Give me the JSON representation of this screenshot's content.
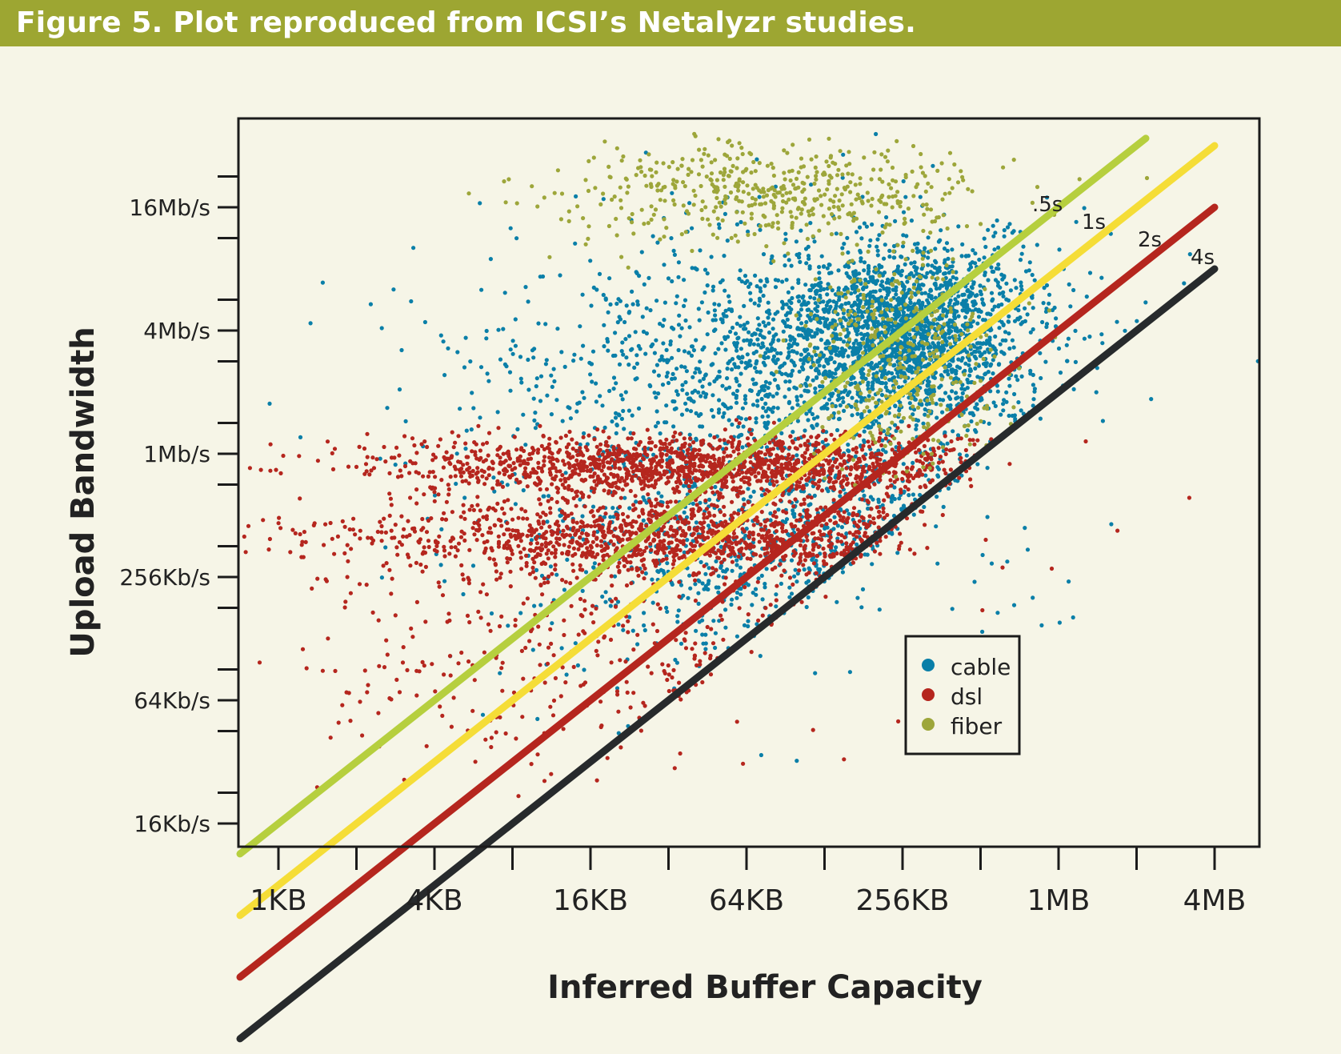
{
  "figure": {
    "title": "Figure 5. Plot reproduced from ICSI’s Netalyzr studies.",
    "header_color": "#9da632",
    "background": "#f6f5e7"
  },
  "chart_data": {
    "type": "scatter",
    "xlabel": "Inferred Buffer Capacity",
    "ylabel": "Upload Bandwidth",
    "x_scale": "log2",
    "y_scale": "log2",
    "xlim": [
      "~700 B",
      "~6 MB"
    ],
    "ylim": [
      "~13 Kb/s",
      "~45 Mb/s"
    ],
    "x_ticks": [
      {
        "label": "1KB",
        "bytes": 1024
      },
      {
        "label": "4KB",
        "bytes": 4096
      },
      {
        "label": "16KB",
        "bytes": 16384
      },
      {
        "label": "64KB",
        "bytes": 65536
      },
      {
        "label": "256KB",
        "bytes": 262144
      },
      {
        "label": "1MB",
        "bytes": 1048576
      },
      {
        "label": "4MB",
        "bytes": 4194304
      }
    ],
    "y_ticks": [
      {
        "label": "16Kb/s",
        "kbps": 16
      },
      {
        "label": "64Kb/s",
        "kbps": 64
      },
      {
        "label": "256Kb/s",
        "kbps": 256
      },
      {
        "label": "1Mb/s",
        "kbps": 1024
      },
      {
        "label": "4Mb/s",
        "kbps": 4096
      },
      {
        "label": "16Mb/s",
        "kbps": 16384
      }
    ],
    "grid": false,
    "legend_position": "bottom-right inside plot",
    "series": [
      {
        "name": "cable",
        "color": "#0a7fa8",
        "marker": "dot"
      },
      {
        "name": "dsl",
        "color": "#b5261e",
        "marker": "dot"
      },
      {
        "name": "fiber",
        "color": "#9da63a",
        "marker": "dot"
      }
    ],
    "point_clusters": [
      {
        "series": "cable",
        "note": "dense cluster around 256KB buffer, 2-8 Mb/s upload",
        "center_kb": 256,
        "center_kbps": 4096,
        "count": 1800
      },
      {
        "series": "cable",
        "note": "broad scatter",
        "center_kb": 90,
        "center_kbps": 2500,
        "count": 1500
      },
      {
        "series": "cable",
        "note": "low-bandwidth diagonal band",
        "center_kb": 120,
        "center_kbps": 300,
        "count": 1100
      },
      {
        "series": "dsl",
        "note": "band at ~1 Mb/s",
        "center_kb": 45,
        "center_kbps": 900,
        "count": 1600
      },
      {
        "series": "dsl",
        "note": "band at ~400 Kb/s",
        "center_kb": 40,
        "center_kbps": 400,
        "count": 1400
      },
      {
        "series": "dsl",
        "note": "sparse low scatter",
        "center_kb": 20,
        "center_kbps": 120,
        "count": 500
      },
      {
        "series": "fiber",
        "note": "top cluster 16-32 Mb/s",
        "center_kb": 70,
        "center_kbps": 20000,
        "count": 500
      },
      {
        "series": "fiber",
        "note": "cluster at 256KB",
        "center_kb": 256,
        "center_kbps": 3000,
        "count": 400
      }
    ],
    "delay_lines": [
      {
        "label": ".5s",
        "seconds": 0.5,
        "color": "#b6cf3e"
      },
      {
        "label": "1s",
        "seconds": 1,
        "color": "#f5dd37"
      },
      {
        "label": "2s",
        "seconds": 2,
        "color": "#b5261e"
      },
      {
        "label": "4s",
        "seconds": 4,
        "color": "#272a2c"
      }
    ]
  }
}
